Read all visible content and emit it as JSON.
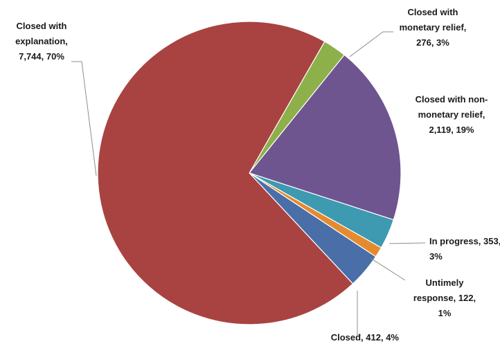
{
  "chart_data": {
    "type": "pie",
    "title": "",
    "start_angle_deg": 60.2,
    "direction": "clockwise",
    "slices": [
      {
        "name": "Closed with monetary relief",
        "value": 276,
        "percent": "3%",
        "color": "#8DB04A",
        "label_lines": [
          "Closed with",
          "monetary relief,",
          "276, 3%"
        ]
      },
      {
        "name": "Closed with non-monetary relief",
        "value": 2119,
        "percent": "19%",
        "color": "#6E558F",
        "label_lines": [
          "Closed with non-",
          "monetary relief,",
          "2,119, 19%"
        ]
      },
      {
        "name": "In progress",
        "value": 353,
        "percent": "3%",
        "color": "#3D9AB0",
        "label_lines": [
          "In progress, 353,",
          "3%"
        ]
      },
      {
        "name": "Untimely response",
        "value": 122,
        "percent": "1%",
        "color": "#E58A2E",
        "label_lines": [
          "Untimely",
          "response, 122,",
          "1%"
        ]
      },
      {
        "name": "Closed",
        "value": 412,
        "percent": "4%",
        "color": "#4A6FA8",
        "label_lines": [
          "Closed, 412, 4%"
        ]
      },
      {
        "name": "Closed with explanation",
        "value": 7744,
        "percent": "70%",
        "color": "#A84341",
        "label_lines": [
          "Closed with",
          "explanation,",
          "7,744, 70%"
        ]
      }
    ]
  }
}
